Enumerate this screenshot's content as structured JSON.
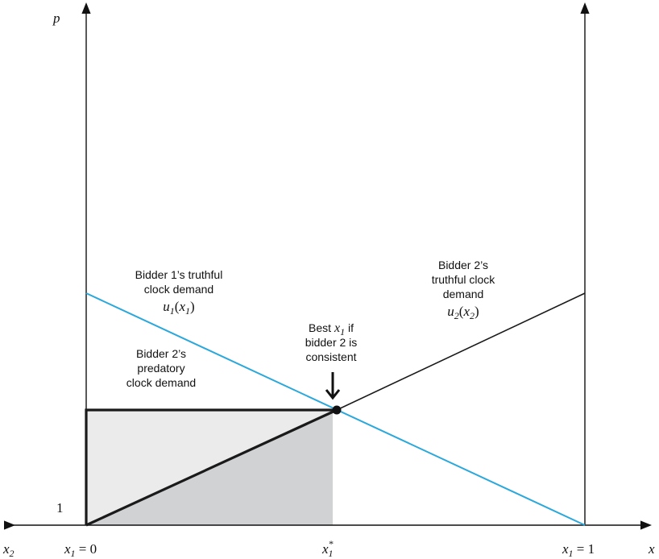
{
  "axes": {
    "y_label": "p",
    "x_label": "x",
    "x2_label": "x",
    "x2_sub": "2",
    "one_label": "1"
  },
  "ticks": {
    "left": {
      "var": "x",
      "sub": "1",
      "rest": " = 0"
    },
    "star": {
      "var": "x",
      "sub": "1",
      "sup": "*"
    },
    "right": {
      "var": "x",
      "sub": "1",
      "rest": " = 1"
    }
  },
  "annotations": {
    "b1_truthful": {
      "line1": "Bidder 1’s truthful",
      "line2": "clock demand",
      "fn": "u",
      "fn_sub": "1",
      "arg": "x",
      "arg_sub": "1"
    },
    "b2_truthful": {
      "line1": "Bidder 2’s",
      "line2": "truthful clock",
      "line3": "demand",
      "fn": "u",
      "fn_sub": "2",
      "arg": "x",
      "arg_sub": "2"
    },
    "b2_predatory": {
      "line1": "Bidder 2’s",
      "line2": "predatory",
      "line3": "clock demand"
    },
    "best": {
      "pre": "Best ",
      "var": "x",
      "sub": "1",
      "post": " if",
      "line2": "bidder 2 is",
      "line3": "consistent"
    }
  },
  "colors": {
    "blue_line": "#2aa8dc",
    "black_line": "#1a1a1a",
    "shade_light": "#ebebeb",
    "shade_dark": "#d1d2d4"
  }
}
